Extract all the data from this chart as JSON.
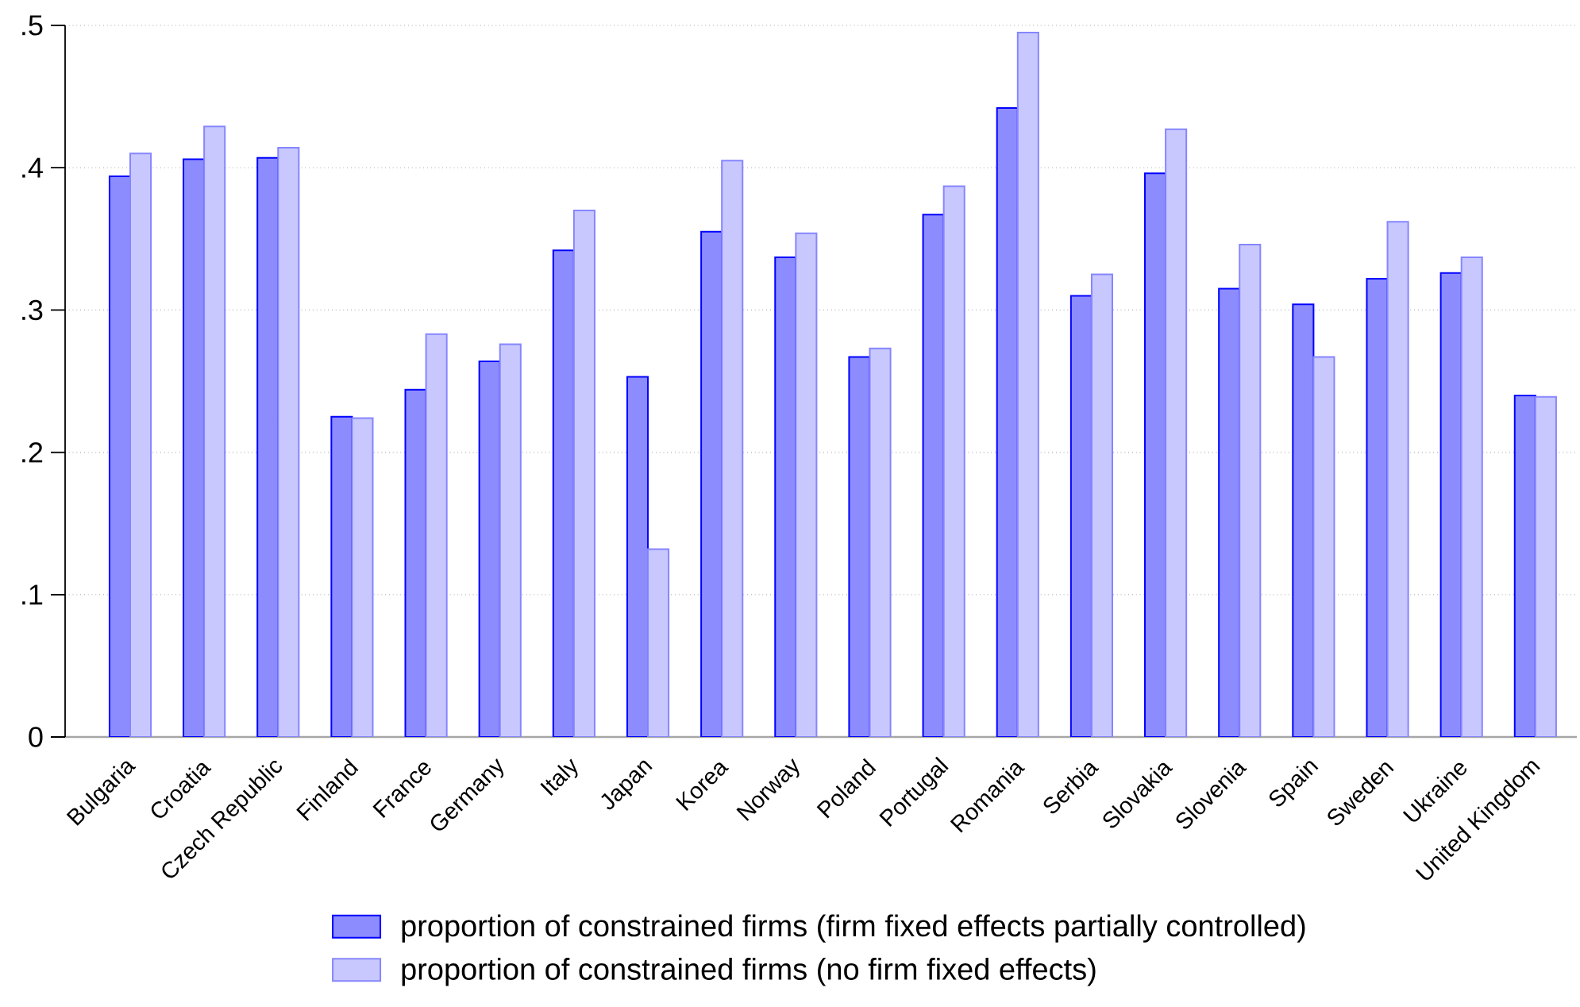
{
  "chart_data": {
    "type": "bar",
    "categories": [
      "Bulgaria",
      "Croatia",
      "Czech Republic",
      "Finland",
      "France",
      "Germany",
      "Italy",
      "Japan",
      "Korea",
      "Norway",
      "Poland",
      "Portugal",
      "Romania",
      "Serbia",
      "Slovakia",
      "Slovenia",
      "Spain",
      "Sweden",
      "Ukraine",
      "United Kingdom"
    ],
    "series": [
      {
        "name": "proportion of constrained firms (firm fixed effects partially controlled)",
        "color": "#8c8cff",
        "values": [
          0.394,
          0.406,
          0.407,
          0.225,
          0.244,
          0.264,
          0.342,
          0.253,
          0.355,
          0.337,
          0.267,
          0.367,
          0.442,
          0.31,
          0.396,
          0.315,
          0.304,
          0.322,
          0.326,
          0.24
        ]
      },
      {
        "name": "proportion of constrained firms (no firm fixed effects)",
        "color": "#c8c8ff",
        "values": [
          0.41,
          0.429,
          0.414,
          0.224,
          0.283,
          0.276,
          0.37,
          0.132,
          0.405,
          0.354,
          0.273,
          0.387,
          0.495,
          0.325,
          0.427,
          0.346,
          0.267,
          0.362,
          0.337,
          0.239
        ]
      }
    ],
    "ylim": [
      0,
      0.5
    ],
    "yticks": [
      0,
      {
        "value": 0.1,
        "label": ".1"
      },
      {
        "value": 0.2,
        "label": ".2"
      },
      {
        "value": 0.3,
        "label": ".3"
      },
      {
        "value": 0.4,
        "label": ".4"
      },
      {
        "value": 0.5,
        "label": ".5"
      }
    ],
    "grid": "y",
    "legend": "bottom"
  }
}
